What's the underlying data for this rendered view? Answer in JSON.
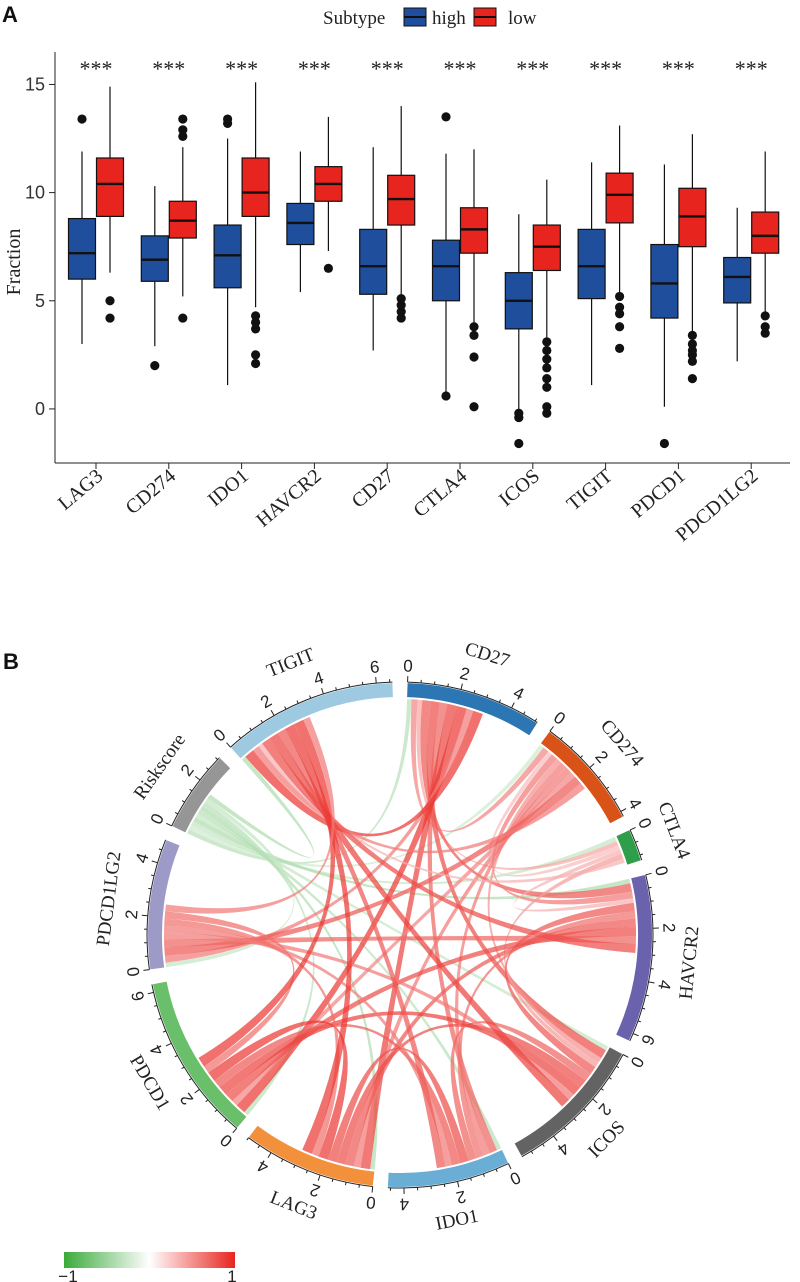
{
  "panels": {
    "a_letter": "A",
    "b_letter": "B"
  },
  "chart_data": [
    {
      "type": "boxplot",
      "ylabel": "Fraction",
      "xlabel": "",
      "ylim": [
        -2.5,
        16.5
      ],
      "yticks": [
        0,
        5,
        10,
        15
      ],
      "legend": {
        "title": "Subtype",
        "position": "top",
        "entries": [
          {
            "name": "high",
            "color": "#1f4e9c"
          },
          {
            "name": "low",
            "color": "#e8241f"
          }
        ]
      },
      "categories": [
        "LAG3",
        "CD274",
        "IDO1",
        "HAVCR2",
        "CD27",
        "CTLA4",
        "ICOS",
        "TIGIT",
        "PDCD1",
        "PDCD1LG2"
      ],
      "significance": [
        "***",
        "***",
        "***",
        "***",
        "***",
        "***",
        "***",
        "***",
        "***",
        "***"
      ],
      "series": [
        {
          "name": "high",
          "color": "#1f4e9c",
          "boxes": [
            {
              "min": 3.0,
              "q1": 6.0,
              "median": 7.2,
              "q3": 8.8,
              "max": 11.9,
              "outliers": [
                13.4
              ]
            },
            {
              "min": 2.9,
              "q1": 5.9,
              "median": 6.9,
              "q3": 8.0,
              "max": 10.3,
              "outliers": [
                2.0
              ]
            },
            {
              "min": 1.1,
              "q1": 5.6,
              "median": 7.1,
              "q3": 8.5,
              "max": 12.5,
              "outliers": [
                13.2,
                13.4
              ]
            },
            {
              "min": 5.4,
              "q1": 7.6,
              "median": 8.6,
              "q3": 9.5,
              "max": 11.9,
              "outliers": []
            },
            {
              "min": 2.7,
              "q1": 5.3,
              "median": 6.6,
              "q3": 8.3,
              "max": 12.1,
              "outliers": []
            },
            {
              "min": 0.8,
              "q1": 5.0,
              "median": 6.6,
              "q3": 7.8,
              "max": 11.8,
              "outliers": [
                0.6,
                13.5
              ]
            },
            {
              "min": 0.0,
              "q1": 3.7,
              "median": 5.0,
              "q3": 6.3,
              "max": 9.0,
              "outliers": [
                -0.2,
                -0.4,
                -1.6
              ]
            },
            {
              "min": 1.1,
              "q1": 5.1,
              "median": 6.6,
              "q3": 8.3,
              "max": 11.4,
              "outliers": []
            },
            {
              "min": 0.1,
              "q1": 4.2,
              "median": 5.8,
              "q3": 7.6,
              "max": 11.3,
              "outliers": [
                -1.6
              ]
            },
            {
              "min": 2.2,
              "q1": 4.9,
              "median": 6.1,
              "q3": 7.0,
              "max": 9.3,
              "outliers": []
            }
          ]
        },
        {
          "name": "low",
          "color": "#e8241f",
          "boxes": [
            {
              "min": 6.3,
              "q1": 8.9,
              "median": 10.4,
              "q3": 11.6,
              "max": 14.9,
              "outliers": [
                5.0,
                4.2
              ]
            },
            {
              "min": 5.2,
              "q1": 7.9,
              "median": 8.7,
              "q3": 9.6,
              "max": 12.1,
              "outliers": [
                4.2,
                12.6,
                12.9,
                13.4
              ]
            },
            {
              "min": 4.7,
              "q1": 8.9,
              "median": 10.0,
              "q3": 11.6,
              "max": 15.1,
              "outliers": [
                2.1,
                2.5,
                3.7,
                4.0,
                4.3
              ]
            },
            {
              "min": 7.3,
              "q1": 9.6,
              "median": 10.4,
              "q3": 11.2,
              "max": 13.5,
              "outliers": [
                6.5
              ]
            },
            {
              "min": 5.3,
              "q1": 8.5,
              "median": 9.7,
              "q3": 10.8,
              "max": 14.0,
              "outliers": [
                4.2,
                4.5,
                4.8,
                5.1
              ]
            },
            {
              "min": 4.0,
              "q1": 7.2,
              "median": 8.3,
              "q3": 9.3,
              "max": 12.0,
              "outliers": [
                3.8,
                3.4,
                2.4,
                0.1
              ]
            },
            {
              "min": 3.3,
              "q1": 6.4,
              "median": 7.5,
              "q3": 8.5,
              "max": 10.6,
              "outliers": [
                3.1,
                2.7,
                2.3,
                1.9,
                1.4,
                1.0,
                0.1,
                -0.2
              ]
            },
            {
              "min": 5.3,
              "q1": 8.6,
              "median": 9.9,
              "q3": 10.9,
              "max": 13.1,
              "outliers": [
                5.2,
                4.7,
                4.4,
                3.8,
                2.8
              ]
            },
            {
              "min": 3.5,
              "q1": 7.5,
              "median": 8.9,
              "q3": 10.2,
              "max": 12.7,
              "outliers": [
                3.4,
                3.0,
                2.7,
                2.5,
                2.2,
                1.4
              ]
            },
            {
              "min": 4.5,
              "q1": 7.2,
              "median": 8.0,
              "q3": 9.1,
              "max": 11.9,
              "outliers": [
                4.3,
                3.8,
                3.5
              ]
            }
          ]
        }
      ]
    },
    {
      "type": "chord",
      "sectors": [
        {
          "name": "CD27",
          "size": 5.1,
          "color": "#2c77b3",
          "ticks": [
            "0",
            "2",
            "4"
          ]
        },
        {
          "name": "CD274",
          "size": 4.2,
          "color": "#d95318",
          "ticks": [
            "0",
            "2",
            "4"
          ]
        },
        {
          "name": "CTLA4",
          "size": 1.2,
          "color": "#2e9e4a",
          "ticks": [
            "0"
          ]
        },
        {
          "name": "HAVCR2",
          "size": 6.3,
          "color": "#6b62ad",
          "ticks": [
            "0",
            "2",
            "4",
            "6"
          ]
        },
        {
          "name": "ICOS",
          "size": 5.4,
          "color": "#636363",
          "ticks": [
            "0",
            "2",
            "4"
          ]
        },
        {
          "name": "IDO1",
          "size": 4.6,
          "color": "#6aaed6",
          "ticks": [
            "0",
            "2",
            "4"
          ]
        },
        {
          "name": "LAG3",
          "size": 5.0,
          "color": "#f2903c",
          "ticks": [
            "0",
            "2",
            "4"
          ]
        },
        {
          "name": "PDCD1",
          "size": 6.3,
          "color": "#6abf6a",
          "ticks": [
            "0",
            "2",
            "4",
            "6"
          ]
        },
        {
          "name": "PDCD1LG2",
          "size": 4.9,
          "color": "#9e9ac8",
          "ticks": [
            "0",
            "2",
            "4"
          ]
        },
        {
          "name": "Riskscore",
          "size": 3.1,
          "color": "#969696",
          "ticks": [
            "0",
            "2"
          ]
        },
        {
          "name": "TIGIT",
          "size": 6.6,
          "color": "#9ecae1",
          "ticks": [
            "0",
            "2",
            "4",
            "6"
          ]
        }
      ],
      "links": [
        {
          "from": "Riskscore",
          "to": "CD27",
          "value": -0.35
        },
        {
          "from": "Riskscore",
          "to": "CD274",
          "value": -0.25
        },
        {
          "from": "Riskscore",
          "to": "CTLA4",
          "value": -0.3
        },
        {
          "from": "Riskscore",
          "to": "HAVCR2",
          "value": -0.4
        },
        {
          "from": "Riskscore",
          "to": "ICOS",
          "value": -0.3
        },
        {
          "from": "Riskscore",
          "to": "IDO1",
          "value": -0.35
        },
        {
          "from": "Riskscore",
          "to": "LAG3",
          "value": -0.4
        },
        {
          "from": "Riskscore",
          "to": "PDCD1",
          "value": -0.35
        },
        {
          "from": "Riskscore",
          "to": "PDCD1LG2",
          "value": -0.3
        },
        {
          "from": "Riskscore",
          "to": "TIGIT",
          "value": -0.4
        },
        {
          "from": "CD27",
          "to": "CD274",
          "value": 0.55
        },
        {
          "from": "CD27",
          "to": "CTLA4",
          "value": 0.4
        },
        {
          "from": "CD27",
          "to": "HAVCR2",
          "value": 0.75
        },
        {
          "from": "CD27",
          "to": "ICOS",
          "value": 0.8
        },
        {
          "from": "CD27",
          "to": "IDO1",
          "value": 0.7
        },
        {
          "from": "CD27",
          "to": "LAG3",
          "value": 0.85
        },
        {
          "from": "CD27",
          "to": "PDCD1",
          "value": 0.9
        },
        {
          "from": "CD27",
          "to": "PDCD1LG2",
          "value": 0.6
        },
        {
          "from": "CD27",
          "to": "TIGIT",
          "value": 0.9
        },
        {
          "from": "CD274",
          "to": "CTLA4",
          "value": 0.3
        },
        {
          "from": "CD274",
          "to": "HAVCR2",
          "value": 0.6
        },
        {
          "from": "CD274",
          "to": "ICOS",
          "value": 0.5
        },
        {
          "from": "CD274",
          "to": "IDO1",
          "value": 0.6
        },
        {
          "from": "CD274",
          "to": "LAG3",
          "value": 0.6
        },
        {
          "from": "CD274",
          "to": "PDCD1",
          "value": 0.55
        },
        {
          "from": "CD274",
          "to": "PDCD1LG2",
          "value": 0.75
        },
        {
          "from": "CD274",
          "to": "TIGIT",
          "value": 0.6
        },
        {
          "from": "CTLA4",
          "to": "HAVCR2",
          "value": 0.35
        },
        {
          "from": "CTLA4",
          "to": "ICOS",
          "value": 0.45
        },
        {
          "from": "CTLA4",
          "to": "TIGIT",
          "value": 0.35
        },
        {
          "from": "HAVCR2",
          "to": "ICOS",
          "value": 0.75
        },
        {
          "from": "HAVCR2",
          "to": "IDO1",
          "value": 0.65
        },
        {
          "from": "HAVCR2",
          "to": "LAG3",
          "value": 0.75
        },
        {
          "from": "HAVCR2",
          "to": "PDCD1",
          "value": 0.8
        },
        {
          "from": "HAVCR2",
          "to": "PDCD1LG2",
          "value": 0.7
        },
        {
          "from": "HAVCR2",
          "to": "TIGIT",
          "value": 0.8
        },
        {
          "from": "ICOS",
          "to": "IDO1",
          "value": 0.7
        },
        {
          "from": "ICOS",
          "to": "LAG3",
          "value": 0.8
        },
        {
          "from": "ICOS",
          "to": "PDCD1",
          "value": 0.85
        },
        {
          "from": "ICOS",
          "to": "PDCD1LG2",
          "value": 0.6
        },
        {
          "from": "ICOS",
          "to": "TIGIT",
          "value": 0.85
        },
        {
          "from": "IDO1",
          "to": "LAG3",
          "value": 0.8
        },
        {
          "from": "IDO1",
          "to": "PDCD1",
          "value": 0.75
        },
        {
          "from": "IDO1",
          "to": "PDCD1LG2",
          "value": 0.6
        },
        {
          "from": "IDO1",
          "to": "TIGIT",
          "value": 0.75
        },
        {
          "from": "LAG3",
          "to": "PDCD1",
          "value": 0.9
        },
        {
          "from": "LAG3",
          "to": "PDCD1LG2",
          "value": 0.65
        },
        {
          "from": "LAG3",
          "to": "TIGIT",
          "value": 0.9
        },
        {
          "from": "PDCD1",
          "to": "PDCD1LG2",
          "value": 0.65
        },
        {
          "from": "PDCD1",
          "to": "TIGIT",
          "value": 0.9
        },
        {
          "from": "PDCD1LG2",
          "to": "TIGIT",
          "value": 0.6
        }
      ],
      "colorbar": {
        "min_label": "−1",
        "max_label": "1",
        "colors": [
          "#3aaa3a",
          "#ffffff",
          "#e8241f"
        ]
      }
    }
  ]
}
